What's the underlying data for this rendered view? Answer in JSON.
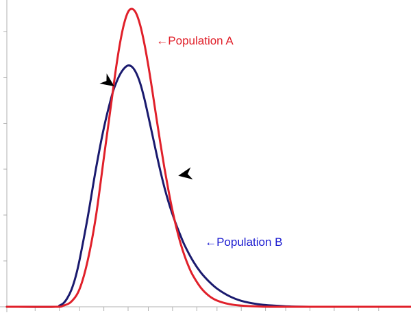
{
  "chart_data": {
    "type": "line",
    "title": "",
    "xlabel": "",
    "ylabel": "",
    "xlim": [
      0,
      100
    ],
    "ylim": [
      0,
      1
    ],
    "grid": false,
    "x_ticks": [
      0,
      7,
      13,
      18,
      24,
      30,
      35,
      41,
      47,
      52,
      58,
      64,
      69,
      75,
      81,
      87,
      92
    ],
    "y_ticks": [
      0,
      0.154,
      0.308,
      0.462,
      0.615,
      0.769,
      0.923
    ],
    "series": [
      {
        "name": "Population A",
        "color": "#e0202a",
        "x": [
          0,
          12,
          14,
          16,
          18,
          20,
          22,
          24,
          25,
          26,
          27,
          28,
          29,
          30,
          31,
          32,
          33,
          34,
          35,
          36,
          37,
          38,
          39,
          40,
          41,
          42,
          43,
          44,
          45,
          46,
          48,
          50,
          52,
          55,
          58,
          62,
          66,
          70,
          75,
          80,
          90,
          100
        ],
        "values": [
          0,
          0,
          0.004,
          0.018,
          0.06,
          0.155,
          0.3,
          0.5,
          0.6,
          0.7,
          0.8,
          0.885,
          0.95,
          0.99,
          1.0,
          0.985,
          0.945,
          0.885,
          0.81,
          0.725,
          0.635,
          0.548,
          0.465,
          0.39,
          0.322,
          0.263,
          0.212,
          0.17,
          0.135,
          0.106,
          0.064,
          0.037,
          0.021,
          0.009,
          0.004,
          0.001,
          0,
          0,
          0,
          0,
          0,
          0
        ]
      },
      {
        "name": "Population B",
        "color": "#1a1a6e",
        "x": [
          0,
          12,
          13,
          14,
          15,
          16,
          17,
          18,
          20,
          22,
          24,
          26,
          27,
          28,
          29,
          30,
          31,
          32,
          33,
          34,
          35,
          36,
          37,
          38,
          39,
          40,
          41,
          42,
          43,
          44,
          46,
          48,
          50,
          52,
          55,
          58,
          62,
          66,
          70,
          75,
          80,
          90,
          100
        ],
        "values": [
          0,
          0,
          0.004,
          0.012,
          0.03,
          0.058,
          0.1,
          0.158,
          0.3,
          0.46,
          0.6,
          0.71,
          0.75,
          0.78,
          0.8,
          0.81,
          0.805,
          0.785,
          0.75,
          0.7,
          0.64,
          0.578,
          0.515,
          0.455,
          0.4,
          0.352,
          0.31,
          0.272,
          0.238,
          0.206,
          0.155,
          0.115,
          0.085,
          0.061,
          0.036,
          0.02,
          0.009,
          0.004,
          0.001,
          0,
          0,
          0,
          0
        ]
      }
    ],
    "annotations": [
      {
        "label": "←Population A",
        "color": "#e0202a",
        "anchor_x": 37,
        "anchor_y": 0.88
      },
      {
        "label": "←Population B",
        "color": "#1a1ad0",
        "anchor_x": 49,
        "anchor_y": 0.205
      }
    ],
    "markers": [
      {
        "name": "intersection-left",
        "x": 26.6,
        "y": 0.74,
        "direction": "down-right"
      },
      {
        "name": "intersection-right",
        "x": 42.4,
        "y": 0.44,
        "direction": "left-down"
      }
    ]
  }
}
